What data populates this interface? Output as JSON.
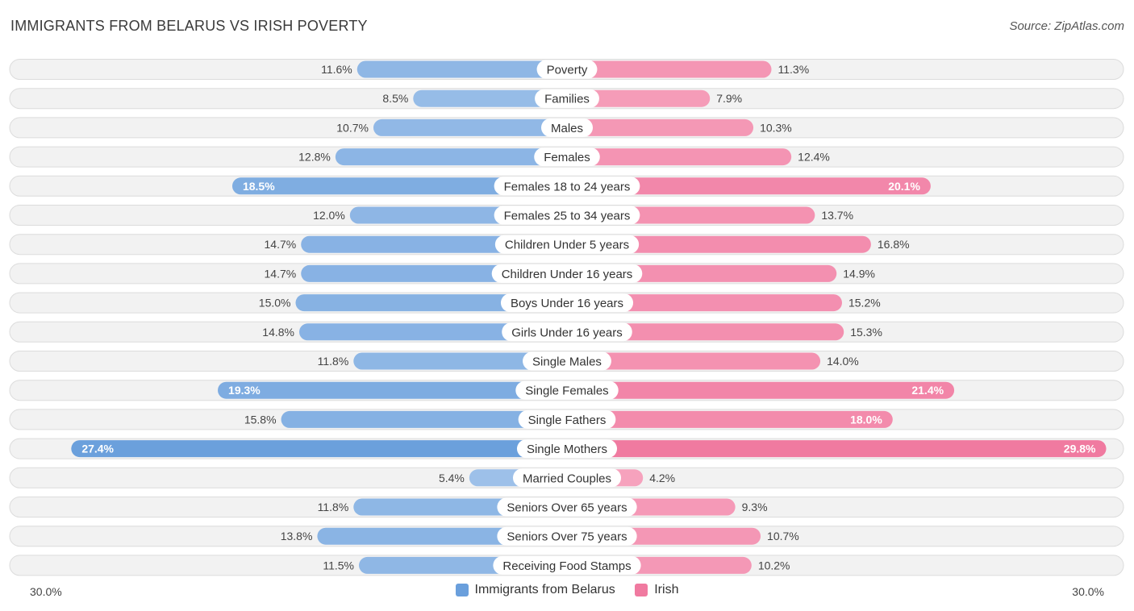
{
  "title": "IMMIGRANTS FROM BELARUS VS IRISH POVERTY",
  "source": "Source: ZipAtlas.com",
  "chart_data": {
    "type": "bar",
    "orientation": "diverging-horizontal",
    "categories": [
      "Poverty",
      "Families",
      "Males",
      "Females",
      "Females 18 to 24 years",
      "Females 25 to 34 years",
      "Children Under 5 years",
      "Children Under 16 years",
      "Boys Under 16 years",
      "Girls Under 16 years",
      "Single Males",
      "Single Females",
      "Single Fathers",
      "Single Mothers",
      "Married Couples",
      "Seniors Over 65 years",
      "Seniors Over 75 years",
      "Receiving Food Stamps"
    ],
    "series": [
      {
        "name": "Immigrants from Belarus",
        "color": "#6a9fdc",
        "values": [
          11.6,
          8.5,
          10.7,
          12.8,
          18.5,
          12.0,
          14.7,
          14.7,
          15.0,
          14.8,
          11.8,
          19.3,
          15.8,
          27.4,
          5.4,
          11.8,
          13.8,
          11.5
        ],
        "labels": [
          "11.6%",
          "8.5%",
          "10.7%",
          "12.8%",
          "18.5%",
          "12.0%",
          "14.7%",
          "14.7%",
          "15.0%",
          "14.8%",
          "11.8%",
          "19.3%",
          "15.8%",
          "27.4%",
          "5.4%",
          "11.8%",
          "13.8%",
          "11.5%"
        ]
      },
      {
        "name": "Irish",
        "color": "#f07aa0",
        "values": [
          11.3,
          7.9,
          10.3,
          12.4,
          20.1,
          13.7,
          16.8,
          14.9,
          15.2,
          15.3,
          14.0,
          21.4,
          18.0,
          29.8,
          4.2,
          9.3,
          10.7,
          10.2
        ],
        "labels": [
          "11.3%",
          "7.9%",
          "10.3%",
          "12.4%",
          "20.1%",
          "13.7%",
          "16.8%",
          "14.9%",
          "15.2%",
          "15.3%",
          "14.0%",
          "21.4%",
          "18.0%",
          "29.8%",
          "4.2%",
          "9.3%",
          "10.7%",
          "10.2%"
        ]
      }
    ],
    "xlim": [
      -30,
      30
    ],
    "axis_labels": {
      "left": "30.0%",
      "right": "30.0%"
    },
    "legend": [
      "Immigrants from Belarus",
      "Irish"
    ],
    "legend_position": "bottom-center"
  }
}
